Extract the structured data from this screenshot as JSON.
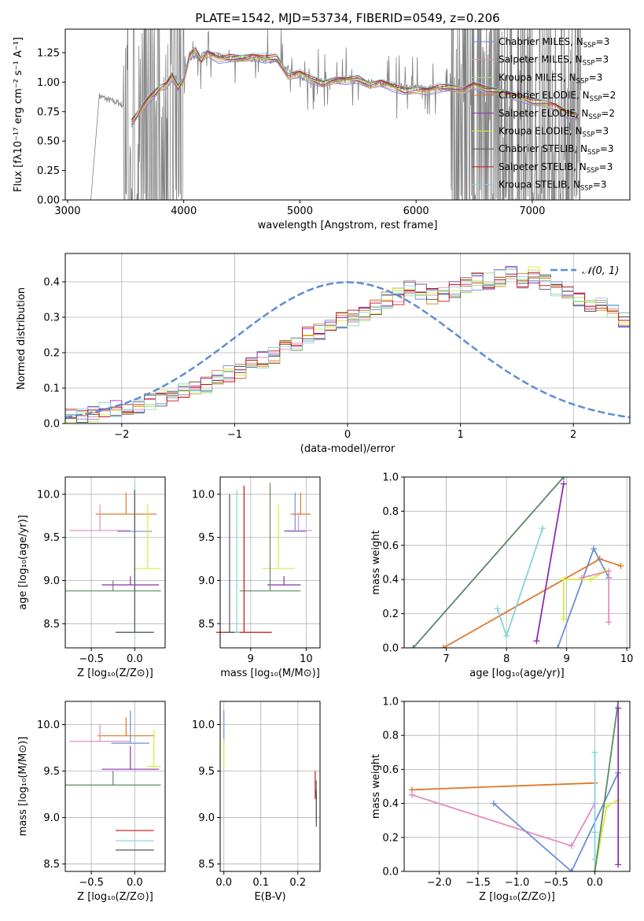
{
  "colors": {
    "Chabrier MILES": "#6a8fd8",
    "Salpeter MILES": "#e48bc0",
    "Kroupa MILES": "#a2dc78",
    "Chabrier ELODIE": "#e0782a",
    "Salpeter ELODIE": "#8e2fb0",
    "Kroupa ELODIE": "#d6ec3a",
    "Chabrier STELIB": "#555555",
    "Salpeter STELIB": "#cc1111",
    "Kroupa STELIB": "#86d2dc",
    "green_line": "#5a8a64",
    "data_gray": "#808080",
    "normal_dashed": "#5f8dd3"
  },
  "chart_data": [
    {
      "type": "line",
      "title": "PLATE=1542, MJD=53734, FIBERID=0549, z=0.206",
      "xlabel": "wavelength [Angstrom, rest frame]",
      "ylabel": "Flux [fλ10⁻¹⁷ erg cm⁻² s⁻¹ A⁻¹]",
      "xlim": [
        2980,
        7840
      ],
      "ylim": [
        0,
        1.45
      ],
      "xticks": [
        "3000",
        "4000",
        "5000",
        "6000",
        "7000"
      ],
      "yticks": [
        "0.00",
        "0.25",
        "0.50",
        "0.75",
        "1.00",
        "1.25"
      ],
      "grid": false,
      "legend_position": "top-right",
      "legend": [
        {
          "prefix": "Chabrier MILES, N",
          "sub": "SSP",
          "suffix": "=3"
        },
        {
          "prefix": "Salpeter MILES, N",
          "sub": "SSP",
          "suffix": "=3"
        },
        {
          "prefix": "Kroupa MILES, N",
          "sub": "SSP",
          "suffix": "=3"
        },
        {
          "prefix": "Chabrier ELODIE, N",
          "sub": "SSP",
          "suffix": "=2"
        },
        {
          "prefix": "Salpeter ELODIE, N",
          "sub": "SSP",
          "suffix": "=2"
        },
        {
          "prefix": "Kroupa ELODIE, N",
          "sub": "SSP",
          "suffix": "=3"
        },
        {
          "prefix": "Chabrier STELIB, N",
          "sub": "SSP",
          "suffix": "=3"
        },
        {
          "prefix": "Salpeter STELIB, N",
          "sub": "SSP",
          "suffix": "=3"
        },
        {
          "prefix": "Kroupa STELIB, N",
          "sub": "SSP",
          "suffix": "=3"
        }
      ],
      "model_continuum": {
        "x": [
          3550,
          3600,
          3650,
          3700,
          3750,
          3800,
          3850,
          3900,
          3950,
          4000,
          4050,
          4100,
          4150,
          4200,
          4300,
          4400,
          4500,
          4600,
          4700,
          4800,
          4900,
          5000,
          5100,
          5200,
          5300,
          5400,
          5500,
          5600,
          5700,
          5800,
          5900,
          6000,
          6100,
          6200,
          6300,
          6400,
          6500,
          6600,
          6700,
          6800,
          6900,
          7000,
          7100,
          7200,
          7300,
          7400
        ],
        "y": [
          0.65,
          0.72,
          0.8,
          0.86,
          0.9,
          0.95,
          0.98,
          1.05,
          0.95,
          1.02,
          1.23,
          1.26,
          1.18,
          1.25,
          1.2,
          1.2,
          1.2,
          1.22,
          1.2,
          1.2,
          1.05,
          1.08,
          1.02,
          0.98,
          1.02,
          1.02,
          1.02,
          0.97,
          1.0,
          0.96,
          0.92,
          0.93,
          0.93,
          0.95,
          0.95,
          0.93,
          0.98,
          0.93,
          0.92,
          0.9,
          0.87,
          0.83,
          0.82,
          0.8,
          0.73,
          0.7
        ]
      },
      "data_flux_x": [
        3280,
        3350,
        3450,
        3550,
        3650,
        3750,
        3850,
        3950,
        4050,
        4200,
        4400,
        4600,
        4800,
        5000,
        5200,
        5400,
        5600,
        5800,
        6000,
        6200,
        6400,
        6600,
        6800,
        7000,
        7200,
        7400
      ],
      "data_flux_y": [
        0.88,
        0.85,
        0.82,
        0.75,
        0.78,
        0.85,
        0.9,
        0.98,
        1.2,
        1.25,
        1.2,
        1.2,
        1.18,
        1.05,
        1.0,
        1.02,
        1.0,
        0.97,
        0.95,
        0.95,
        0.93,
        0.92,
        0.88,
        0.82,
        0.8,
        0.72
      ]
    },
    {
      "type": "histogram",
      "xlabel": "(data-model)/error",
      "ylabel": "Normed distribution",
      "xlim": [
        -2.5,
        2.5
      ],
      "ylim": [
        0,
        0.48
      ],
      "xticks": [
        "−2",
        "−1",
        "0",
        "1",
        "2"
      ],
      "yticks": [
        "0.0",
        "0.1",
        "0.2",
        "0.3",
        "0.4"
      ],
      "grid": true,
      "legend_position": "top-right",
      "legend": [
        "𝒩(0, 1)"
      ],
      "bins_start": -2.5,
      "bin_width": 0.1,
      "base_values": [
        0.02,
        0.025,
        0.03,
        0.035,
        0.04,
        0.045,
        0.05,
        0.06,
        0.07,
        0.08,
        0.09,
        0.1,
        0.11,
        0.125,
        0.14,
        0.15,
        0.165,
        0.18,
        0.195,
        0.21,
        0.23,
        0.25,
        0.26,
        0.27,
        0.29,
        0.3,
        0.31,
        0.33,
        0.35,
        0.36,
        0.38,
        0.37,
        0.36,
        0.37,
        0.38,
        0.39,
        0.4,
        0.4,
        0.41,
        0.43,
        0.4,
        0.42,
        0.4,
        0.38,
        0.37,
        0.35,
        0.34,
        0.33,
        0.31,
        0.29,
        0.27,
        0.25,
        0.23,
        0.21,
        0.2,
        0.18,
        0.16,
        0.14,
        0.12,
        0.11,
        0.1,
        0.09,
        0.08,
        0.07,
        0.06,
        0.055,
        0.05,
        0.045,
        0.04,
        0.035
      ]
    },
    {
      "type": "errorbar",
      "xlabel": "Z [log₁₀(Z/Z⊙)]",
      "ylabel": "age  [log₁₀(age/yr)]",
      "xlim": [
        -0.8,
        0.35
      ],
      "ylim": [
        8.22,
        10.2
      ],
      "xticks": [
        "−0.5",
        "0.0"
      ],
      "yticks": [
        "8.5",
        "9.0",
        "9.5",
        "10.0"
      ],
      "points": [
        {
          "model": "Chabrier ELODIE",
          "x": -0.1,
          "xerr": 0.35,
          "y": 9.77,
          "yerr": 0.25
        },
        {
          "model": "Salpeter MILES",
          "x": -0.4,
          "xerr": 0.35,
          "y": 9.58,
          "yerr": 0.3
        },
        {
          "model": "Chabrier MILES",
          "x": 0.0,
          "xerr": 0.2,
          "y": 9.57,
          "yerr": 0.5
        },
        {
          "model": "Kroupa ELODIE",
          "x": 0.15,
          "xerr": 0.15,
          "y": 9.14,
          "yerr": 0.75
        },
        {
          "model": "Salpeter ELODIE",
          "x": -0.05,
          "xerr": 0.33,
          "y": 8.95,
          "yerr": 0.1
        },
        {
          "model": "green_line",
          "x": -0.25,
          "xerr": 0.55,
          "y": 8.88,
          "yerr": 0.12
        },
        {
          "model": "Kroupa STELIB",
          "x": 0.0,
          "xerr": 0.22,
          "y": 8.4,
          "yerr": 1.7
        },
        {
          "model": "Chabrier STELIB",
          "x": 0.0,
          "xerr": 0.22,
          "y": 8.4,
          "yerr": 1.65
        }
      ]
    },
    {
      "type": "errorbar",
      "xlabel": "mass [log₁₀(M/M⊙)]",
      "xlim": [
        8.45,
        10.25
      ],
      "ylim": [
        8.22,
        10.2
      ],
      "xticks": [
        "9",
        "10"
      ],
      "yticks": [
        "8.5",
        "9.0",
        "9.5",
        "10.0"
      ],
      "points": [
        {
          "model": "Chabrier ELODIE",
          "x": 9.9,
          "xerr": 0.18,
          "y": 9.77,
          "yerr": 0.25
        },
        {
          "model": "Chabrier MILES",
          "x": 9.8,
          "xerr": 0.2,
          "y": 9.57,
          "yerr": 0.45
        },
        {
          "model": "Salpeter MILES",
          "x": 9.86,
          "xerr": 0.25,
          "y": 9.58,
          "yerr": 0.2
        },
        {
          "model": "Kroupa ELODIE",
          "x": 9.5,
          "xerr": 0.3,
          "y": 9.14,
          "yerr": 0.75
        },
        {
          "model": "Salpeter ELODIE",
          "x": 9.6,
          "xerr": 0.3,
          "y": 8.95,
          "yerr": 0.1
        },
        {
          "model": "green_line",
          "x": 9.35,
          "xerr": 0.55,
          "y": 8.88,
          "yerr": 1.25
        },
        {
          "model": "Salpeter STELIB",
          "x": 8.88,
          "xerr": 0.5,
          "y": 8.4,
          "yerr": 1.7
        },
        {
          "model": "Kroupa STELIB",
          "x": 8.75,
          "xerr": 0.05,
          "y": 8.4,
          "yerr": 1.65
        },
        {
          "model": "Chabrier STELIB",
          "x": 8.62,
          "xerr": 0.1,
          "y": 8.4,
          "yerr": 1.6
        }
      ]
    },
    {
      "type": "line",
      "xlabel": "age  [log₁₀(age/yr)]",
      "ylabel": "mass weight",
      "xlim": [
        6.3,
        10.05
      ],
      "ylim": [
        0,
        1.0
      ],
      "xticks": [
        "7",
        "8",
        "9",
        "10"
      ],
      "yticks": [
        "0.0",
        "0.2",
        "0.4",
        "0.6",
        "0.8",
        "1.0"
      ],
      "grid": true,
      "series": [
        {
          "model": "green_line",
          "x": [
            6.45,
            8.95
          ],
          "y": [
            0.0,
            1.0
          ]
        },
        {
          "model": "Chabrier ELODIE",
          "x": [
            6.95,
            9.55,
            9.9
          ],
          "y": [
            0.0,
            0.52,
            0.48
          ]
        },
        {
          "model": "Salpeter ELODIE",
          "x": [
            8.5,
            8.95
          ],
          "y": [
            0.04,
            0.96
          ]
        },
        {
          "model": "Kroupa STELIB",
          "x": [
            7.85,
            8.0,
            8.6
          ],
          "y": [
            0.23,
            0.07,
            0.7
          ]
        },
        {
          "model": "Chabrier MILES",
          "x": [
            8.85,
            9.45,
            9.7
          ],
          "y": [
            0.0,
            0.58,
            0.41
          ]
        },
        {
          "model": "Kroupa ELODIE",
          "x": [
            8.95,
            8.95,
            9.4,
            9.65
          ],
          "y": [
            0.17,
            0.4,
            0.4,
            0.45
          ]
        },
        {
          "model": "Salpeter MILES",
          "x": [
            9.25,
            9.7,
            9.7
          ],
          "y": [
            0.41,
            0.45,
            0.15
          ]
        }
      ]
    },
    {
      "type": "errorbar",
      "xlabel": "Z [log₁₀(Z/Z⊙)]",
      "ylabel": "mass [log₁₀(M/M⊙)]",
      "xlim": [
        -0.8,
        0.35
      ],
      "ylim": [
        8.42,
        10.25
      ],
      "xticks": [
        "−0.5",
        "0.0"
      ],
      "yticks": [
        "8.5",
        "9.0",
        "9.5",
        "10.0"
      ],
      "points": [
        {
          "model": "Chabrier ELODIE",
          "x": -0.1,
          "xerr": 0.33,
          "y": 9.88,
          "yerr": 0.2
        },
        {
          "model": "Salpeter MILES",
          "x": -0.4,
          "xerr": 0.35,
          "y": 9.82,
          "yerr": 0.18
        },
        {
          "model": "Chabrier MILES",
          "x": -0.05,
          "xerr": 0.22,
          "y": 9.8,
          "yerr": 0.35
        },
        {
          "model": "Salpeter ELODIE",
          "x": -0.05,
          "xerr": 0.33,
          "y": 9.52,
          "yerr": 0.25
        },
        {
          "model": "Kroupa ELODIE",
          "x": 0.22,
          "xerr": 0.08,
          "y": 9.55,
          "yerr": 0.4
        },
        {
          "model": "green_line",
          "x": -0.25,
          "xerr": 0.55,
          "y": 9.35,
          "yerr": 0.15
        },
        {
          "model": "Salpeter STELIB",
          "x": 0.0,
          "xerr": 0.22,
          "y": 8.86,
          "yerr": 0.0
        },
        {
          "model": "Kroupa STELIB",
          "x": 0.0,
          "xerr": 0.22,
          "y": 8.75,
          "yerr": 0.0
        },
        {
          "model": "Chabrier STELIB",
          "x": 0.0,
          "xerr": 0.22,
          "y": 8.65,
          "yerr": 0.0
        }
      ]
    },
    {
      "type": "errorbar",
      "xlabel": "E(B-V)",
      "xlim": [
        -0.01,
        0.26
      ],
      "ylim": [
        8.42,
        10.25
      ],
      "xticks": [
        "0.0",
        "0.1",
        "0.2"
      ],
      "yticks": [
        "8.5",
        "9.0",
        "9.5",
        "10.0"
      ],
      "points": [
        {
          "model": "Chabrier MILES",
          "x": 0.0,
          "xerr": 0.0,
          "y": 9.8,
          "yerr": 0.35
        },
        {
          "model": "Kroupa ELODIE",
          "x": 0.0,
          "xerr": 0.0,
          "y": 9.55,
          "yerr": 0.3
        },
        {
          "model": "Salpeter STELIB",
          "x": 0.247,
          "xerr": 0.0,
          "y": 9.2,
          "yerr": 0.3
        },
        {
          "model": "green_line",
          "x": 0.25,
          "xerr": 0.0,
          "y": 8.95,
          "yerr": 0.45
        },
        {
          "model": "Chabrier STELIB",
          "x": 0.25,
          "xerr": 0.0,
          "y": 8.9,
          "yerr": 0.4
        }
      ]
    },
    {
      "type": "line",
      "xlabel": "Z [log₁₀(Z/Z⊙)]",
      "ylabel": "mass weight",
      "xlim": [
        -2.45,
        0.45
      ],
      "ylim": [
        0,
        1.0
      ],
      "xticks": [
        "−2.0",
        "−1.5",
        "−1.0",
        "−0.5",
        "0.0"
      ],
      "yticks": [
        "0.0",
        "0.2",
        "0.4",
        "0.6",
        "0.8",
        "1.0"
      ],
      "grid": true,
      "series": [
        {
          "model": "Chabrier ELODIE",
          "x": [
            -2.35,
            0.0
          ],
          "y": [
            0.48,
            0.52
          ]
        },
        {
          "model": "Salpeter MILES",
          "x": [
            -2.35,
            -0.3,
            0.0
          ],
          "y": [
            0.45,
            0.15,
            0.4
          ]
        },
        {
          "model": "Chabrier MILES",
          "x": [
            -1.3,
            -0.3,
            0.3
          ],
          "y": [
            0.4,
            0.0,
            0.58
          ]
        },
        {
          "model": "Kroupa ELODIE",
          "x": [
            0.0,
            0.15,
            0.3
          ],
          "y": [
            0.0,
            0.38,
            0.42
          ]
        },
        {
          "model": "green_line",
          "x": [
            0.0,
            0.3
          ],
          "y": [
            0.0,
            1.0
          ]
        },
        {
          "model": "Kroupa STELIB",
          "x": [
            0.0,
            0.0,
            0.0
          ],
          "y": [
            0.07,
            0.23,
            0.7
          ]
        },
        {
          "model": "Salpeter ELODIE",
          "x": [
            0.3,
            0.3
          ],
          "y": [
            0.04,
            0.96
          ]
        }
      ]
    }
  ]
}
